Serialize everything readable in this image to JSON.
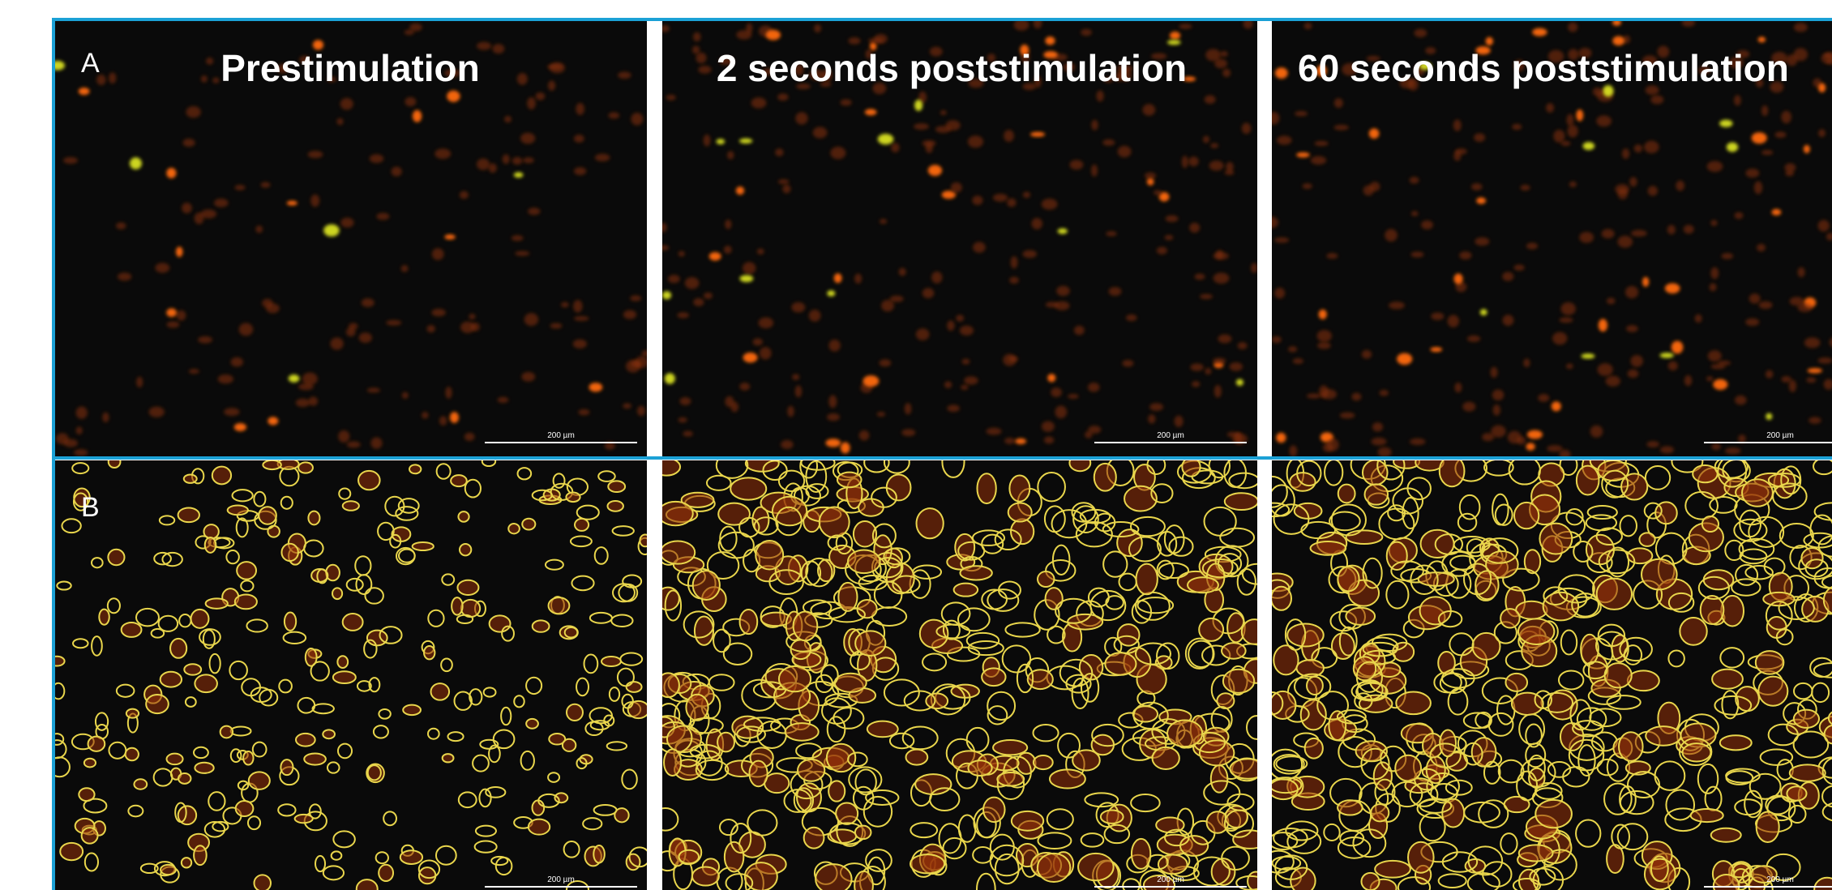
{
  "column_titles": [
    "Prestimulation",
    "2 seconds poststimulation",
    "60 seconds poststimulation"
  ],
  "rows": [
    {
      "label": "A",
      "scale_bars": [
        "200 µm",
        "200 µm",
        "200 µm"
      ]
    },
    {
      "label": "B",
      "scale_bars": [
        "200 µm",
        "200 µm",
        "200 µm"
      ]
    }
  ]
}
